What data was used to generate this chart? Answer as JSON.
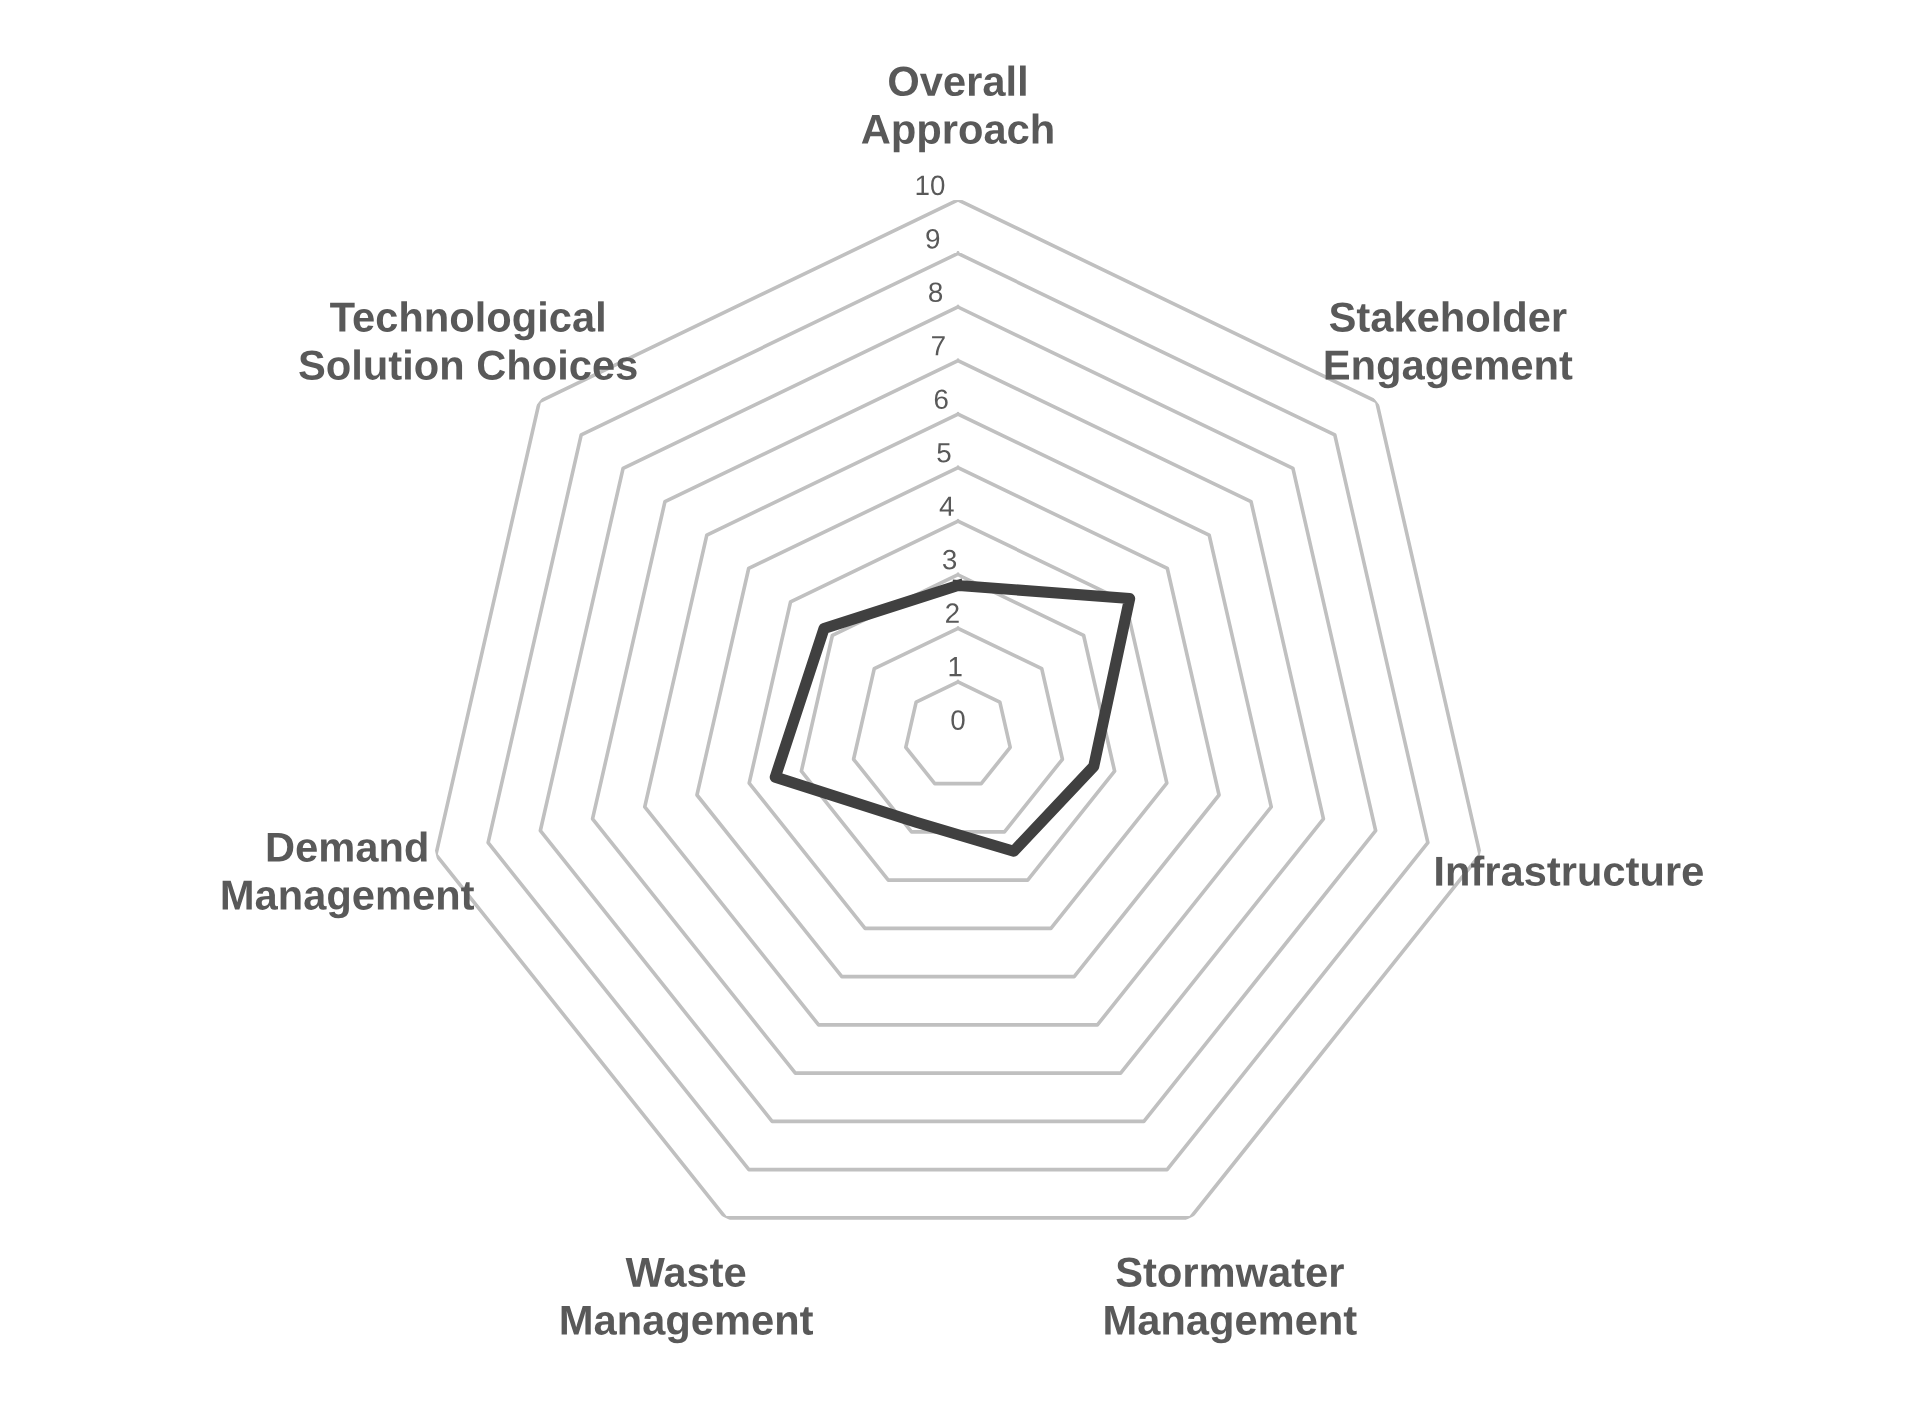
{
  "chart_data": {
    "type": "radar",
    "categories": [
      "Overall\nApproach",
      "Stakeholder\nEngagement",
      "Infrastructure",
      "Stormwater\nManagement",
      "Waste\nManagement",
      "Demand\nManagement",
      "Technological\nSolution Choices"
    ],
    "series": [
      {
        "color": "#404040",
        "values": [
          2.8,
          4.1,
          2.6,
          2.4,
          1.8,
          3.5,
          3.2
        ]
      }
    ],
    "ylim": [
      0,
      10
    ],
    "yticks": [
      0,
      1,
      2,
      3,
      4,
      5,
      6,
      7,
      8,
      9,
      10
    ],
    "grid": true,
    "legend": false,
    "marker": "none",
    "line_style": "solid"
  }
}
